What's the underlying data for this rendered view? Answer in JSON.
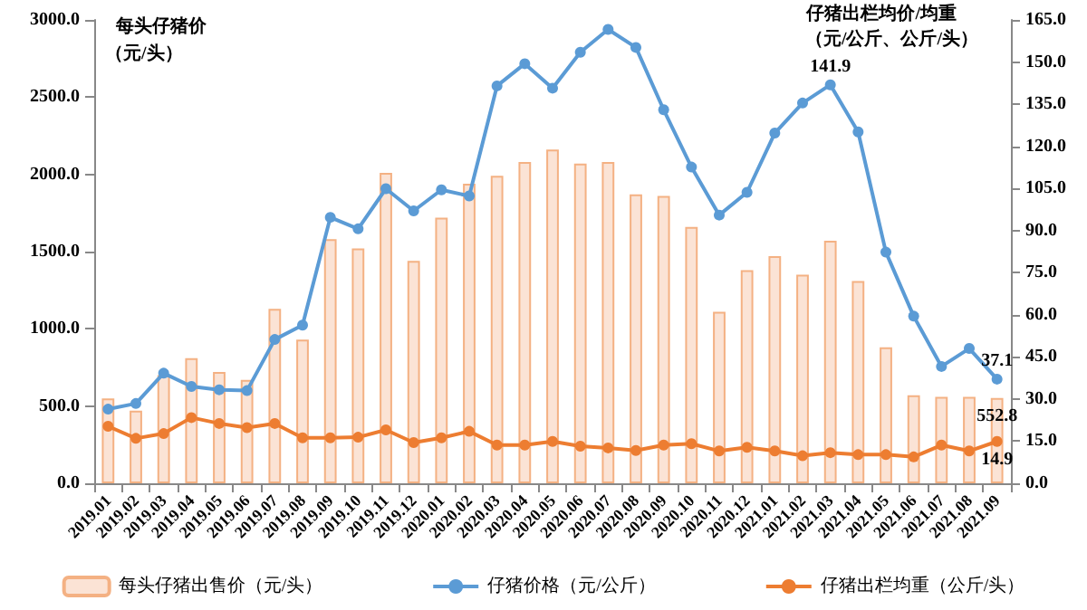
{
  "chart_data": {
    "type": "bar",
    "ylabel": "每头仔猪价（元/头）",
    "y2label": "仔猪出栏均价/均重（元/公斤、公斤/头）",
    "categories": [
      "2019.01",
      "2019.02",
      "2019.03",
      "2019.04",
      "2019.05",
      "2019.06",
      "2019.07",
      "2019.08",
      "2019.09",
      "2019.10",
      "2019.11",
      "2019.12",
      "2020.01",
      "2020.02",
      "2020.03",
      "2020.04",
      "2020.05",
      "2020.06",
      "2020.07",
      "2020.08",
      "2020.09",
      "2020.10",
      "2020.11",
      "2020.12",
      "2021.01",
      "2021.02",
      "2021.03",
      "2021.04",
      "2021.05",
      "2021.06",
      "2021.07",
      "2021.08",
      "2021.09"
    ],
    "series": [
      {
        "name": "每头仔猪出售价（元/头）",
        "color": "#fbe3d5",
        "values": [
          550,
          470,
          700,
          810,
          720,
          670,
          1130,
          930,
          1580,
          1520,
          2010,
          1440,
          1720,
          1940,
          1990,
          2080,
          2160,
          2070,
          2080,
          1870,
          1860,
          1660,
          1110,
          1380,
          1470,
          1350,
          1570,
          1310,
          880,
          570,
          560,
          560,
          552.8
        ],
        "value_labels": [
          null,
          null,
          null,
          null,
          null,
          null,
          null,
          null,
          null,
          null,
          null,
          null,
          null,
          null,
          null,
          null,
          null,
          null,
          null,
          null,
          null,
          null,
          null,
          null,
          null,
          null,
          null,
          null,
          null,
          null,
          null,
          null,
          "552.8"
        ]
      },
      {
        "name": "仔猪价格（元/公斤）",
        "type": "line",
        "axis": "y2",
        "color": "#5b9bd5",
        "values": [
          26.4,
          28.4,
          39.2,
          34.5,
          33.3,
          33.0,
          51.2,
          56.3,
          94.7,
          90.6,
          104.9,
          97.0,
          104.5,
          102.3,
          141.5,
          149.4,
          140.7,
          153.5,
          161.6,
          155.2,
          133.0,
          112.6,
          95.5,
          103.6,
          124.7,
          135.4,
          141.9,
          125.1,
          82.3,
          59.5,
          41.6,
          48.0,
          37.1
        ],
        "value_labels": [
          null,
          null,
          null,
          null,
          null,
          null,
          null,
          null,
          null,
          null,
          null,
          null,
          null,
          null,
          null,
          null,
          null,
          null,
          null,
          null,
          null,
          null,
          null,
          null,
          null,
          null,
          "141.9",
          null,
          null,
          null,
          null,
          null,
          "37.1"
        ]
      },
      {
        "name": "仔猪出栏均重（公斤/头）",
        "type": "line",
        "axis": "y2",
        "color": "#ed7d31",
        "values": [
          20.3,
          16.0,
          17.7,
          23.4,
          21.3,
          19.8,
          21.3,
          16.2,
          16.2,
          16.4,
          19.0,
          14.5,
          16.2,
          18.5,
          13.6,
          13.6,
          14.9,
          13.2,
          12.6,
          11.7,
          13.6,
          14.1,
          11.5,
          12.8,
          11.5,
          9.8,
          10.9,
          10.2,
          10.2,
          9.4,
          13.6,
          11.5,
          14.9
        ],
        "value_labels": [
          null,
          null,
          null,
          null,
          null,
          null,
          null,
          null,
          null,
          null,
          null,
          null,
          null,
          null,
          null,
          null,
          null,
          null,
          null,
          null,
          null,
          null,
          null,
          null,
          null,
          null,
          null,
          null,
          null,
          null,
          null,
          null,
          "14.9"
        ]
      }
    ],
    "ylim": [
      0,
      3000
    ],
    "yticks": [
      {
        "value": 0,
        "label": "0.0"
      },
      {
        "value": 500,
        "label": "500.0"
      },
      {
        "value": 1000,
        "label": "1000.0"
      },
      {
        "value": 1500,
        "label": "1500.0"
      },
      {
        "value": 2000,
        "label": "2000.0"
      },
      {
        "value": 2500,
        "label": "2500.0"
      },
      {
        "value": 3000,
        "label": "3000.0"
      }
    ],
    "y2lim": [
      0,
      165
    ],
    "y2ticks": [
      {
        "value": 0,
        "label": "0.0"
      },
      {
        "value": 15,
        "label": "15.0"
      },
      {
        "value": 30,
        "label": "30.0"
      },
      {
        "value": 45,
        "label": "45.0"
      },
      {
        "value": 60,
        "label": "60.0"
      },
      {
        "value": 75,
        "label": "75.0"
      },
      {
        "value": 90,
        "label": "90.0"
      },
      {
        "value": 105,
        "label": "105.0"
      },
      {
        "value": 120,
        "label": "120.0"
      },
      {
        "value": 135,
        "label": "135.0"
      },
      {
        "value": 150,
        "label": "150.0"
      },
      {
        "value": 165,
        "label": "165.0"
      }
    ],
    "marker": "circle",
    "grid": false,
    "legend": "bottom"
  }
}
